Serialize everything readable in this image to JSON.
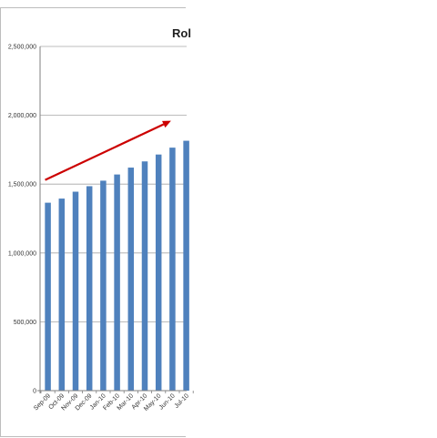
{
  "chart_data": {
    "type": "bar",
    "title": "Rol",
    "xlabel": "",
    "ylabel": "",
    "categories": [
      "Sep-09",
      "Oct-09",
      "Nov-09",
      "Dec-09",
      "Jan-10",
      "Feb-10",
      "Mar-10",
      "Apr-10",
      "May-10",
      "Jun-10",
      "Jul-10"
    ],
    "values": [
      1365000,
      1395000,
      1445000,
      1485000,
      1525000,
      1570000,
      1620000,
      1665000,
      1715000,
      1765000,
      1815000
    ],
    "ylim": [
      0,
      2500000
    ],
    "yticks": [
      0,
      500000,
      1000000,
      1500000,
      2000000,
      2500000
    ],
    "ytick_labels": [
      "0",
      "500,000",
      "1,000,000",
      "1,500,000",
      "2,000,000",
      "2,500,000"
    ],
    "grid": true,
    "bar_color": "#4f81bd",
    "trend_arrow": {
      "from": [
        -0.2,
        1530000
      ],
      "to": [
        8.9,
        1960000
      ],
      "color": "#cc0000"
    }
  }
}
